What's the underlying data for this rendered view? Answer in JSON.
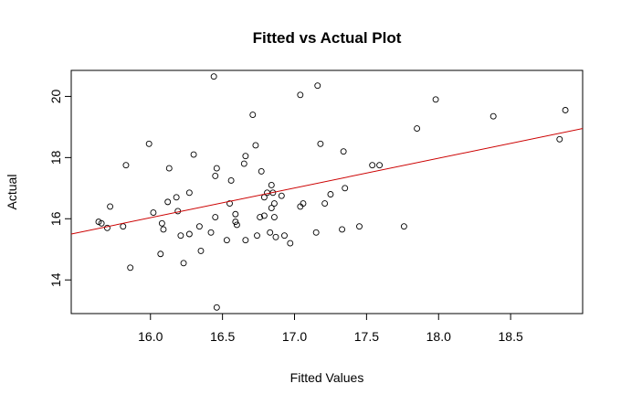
{
  "chart_data": {
    "type": "scatter",
    "title": "Fitted vs Actual Plot",
    "xlabel": "Fitted Values",
    "ylabel": "Actual",
    "xlim": [
      15.45,
      19.0
    ],
    "ylim": [
      12.9,
      20.85
    ],
    "x_ticks": [
      "16.0",
      "16.5",
      "17.0",
      "17.5",
      "18.0",
      "18.5"
    ],
    "y_ticks": [
      "14",
      "16",
      "18",
      "20"
    ],
    "grid": false,
    "legend": "none",
    "point_color": "#000000",
    "fit_line": {
      "color": "#cc0000",
      "x": [
        15.45,
        19.0
      ],
      "y": [
        15.5,
        18.95
      ]
    },
    "points": [
      [
        15.64,
        15.9
      ],
      [
        15.66,
        15.85
      ],
      [
        15.7,
        15.7
      ],
      [
        15.72,
        16.4
      ],
      [
        15.81,
        15.75
      ],
      [
        15.83,
        17.75
      ],
      [
        15.86,
        14.4
      ],
      [
        15.99,
        18.45
      ],
      [
        16.02,
        16.2
      ],
      [
        16.07,
        14.85
      ],
      [
        16.08,
        15.85
      ],
      [
        16.09,
        15.65
      ],
      [
        16.12,
        16.55
      ],
      [
        16.13,
        17.65
      ],
      [
        16.18,
        16.7
      ],
      [
        16.19,
        16.25
      ],
      [
        16.21,
        15.45
      ],
      [
        16.23,
        14.55
      ],
      [
        16.27,
        16.85
      ],
      [
        16.27,
        15.5
      ],
      [
        16.3,
        18.1
      ],
      [
        16.34,
        15.75
      ],
      [
        16.35,
        14.95
      ],
      [
        16.42,
        15.55
      ],
      [
        16.44,
        20.65
      ],
      [
        16.45,
        17.4
      ],
      [
        16.45,
        16.05
      ],
      [
        16.46,
        17.65
      ],
      [
        16.46,
        13.1
      ],
      [
        16.53,
        15.3
      ],
      [
        16.55,
        16.5
      ],
      [
        16.56,
        17.25
      ],
      [
        16.59,
        15.9
      ],
      [
        16.59,
        16.15
      ],
      [
        16.6,
        15.8
      ],
      [
        16.65,
        17.8
      ],
      [
        16.66,
        18.05
      ],
      [
        16.66,
        15.3
      ],
      [
        16.71,
        19.4
      ],
      [
        16.73,
        18.4
      ],
      [
        16.74,
        15.45
      ],
      [
        16.76,
        16.05
      ],
      [
        16.77,
        17.55
      ],
      [
        16.79,
        16.1
      ],
      [
        16.79,
        16.7
      ],
      [
        16.81,
        16.85
      ],
      [
        16.83,
        15.55
      ],
      [
        16.84,
        16.35
      ],
      [
        16.84,
        17.1
      ],
      [
        16.85,
        16.85
      ],
      [
        16.86,
        16.5
      ],
      [
        16.86,
        16.05
      ],
      [
        16.87,
        15.4
      ],
      [
        16.91,
        16.75
      ],
      [
        16.93,
        15.45
      ],
      [
        16.97,
        15.2
      ],
      [
        17.04,
        16.4
      ],
      [
        17.04,
        20.05
      ],
      [
        17.06,
        16.5
      ],
      [
        17.15,
        15.55
      ],
      [
        17.16,
        20.35
      ],
      [
        17.18,
        18.45
      ],
      [
        17.21,
        16.5
      ],
      [
        17.25,
        16.8
      ],
      [
        17.33,
        15.65
      ],
      [
        17.34,
        18.2
      ],
      [
        17.35,
        17.0
      ],
      [
        17.45,
        15.75
      ],
      [
        17.54,
        17.75
      ],
      [
        17.59,
        17.75
      ],
      [
        17.76,
        15.75
      ],
      [
        17.85,
        18.95
      ],
      [
        17.98,
        19.9
      ],
      [
        18.38,
        19.35
      ],
      [
        18.84,
        18.6
      ],
      [
        18.88,
        19.55
      ]
    ]
  }
}
